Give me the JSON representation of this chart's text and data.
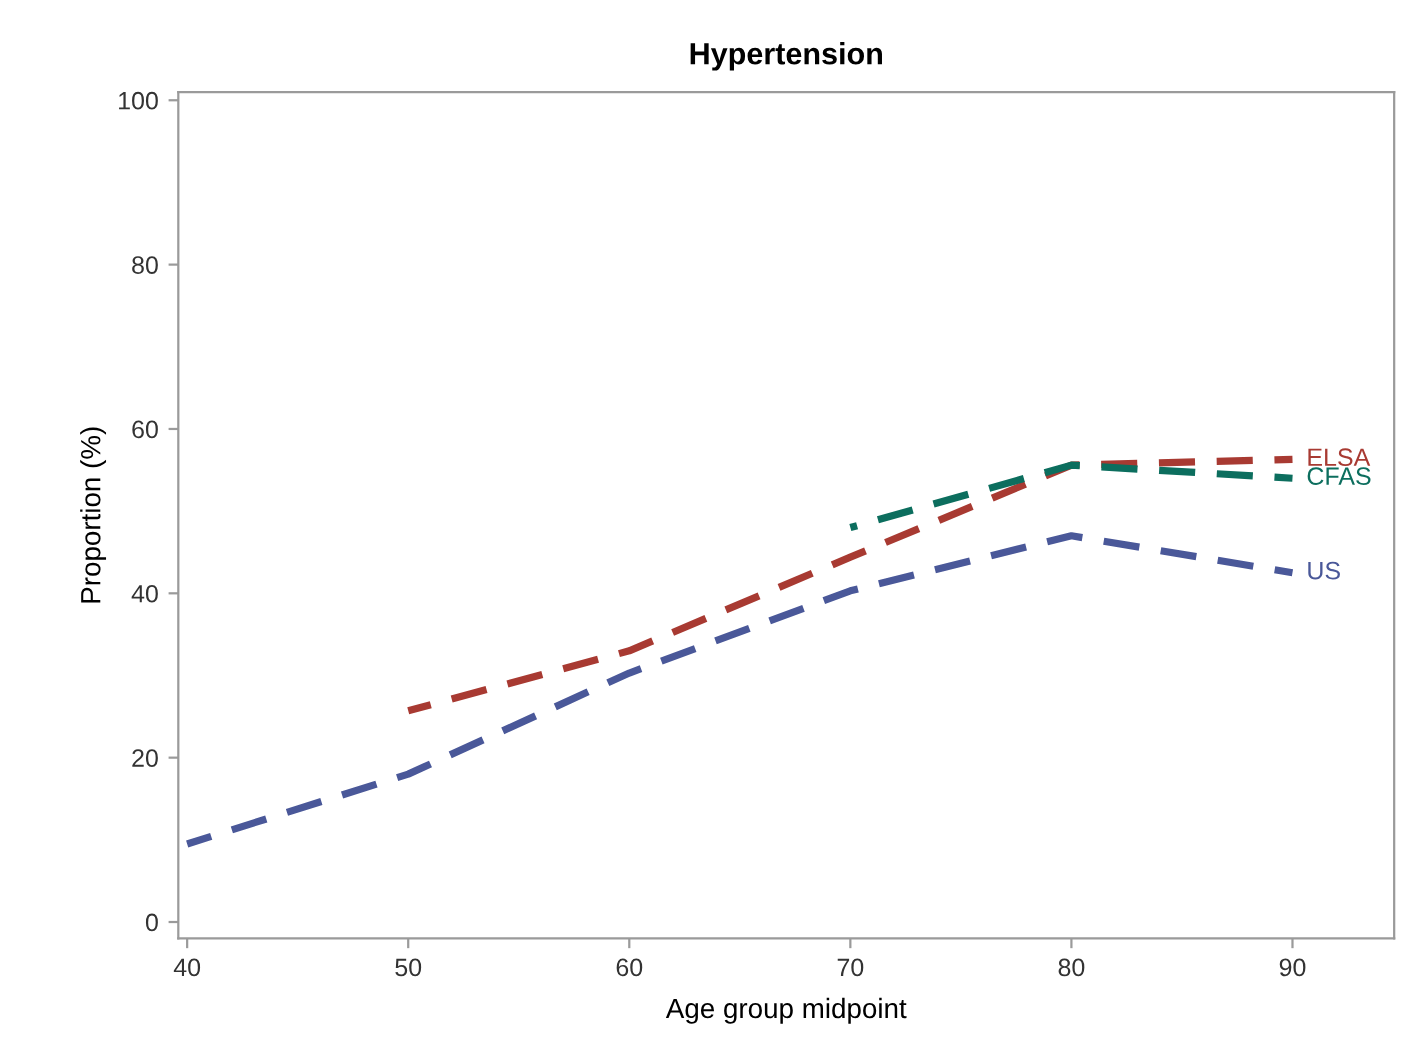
{
  "chart_data": {
    "type": "line",
    "title": "Hypertension",
    "xlabel": "Age group midpoint",
    "ylabel": "Proportion (%)",
    "xlim": [
      39.6,
      94.6
    ],
    "ylim": [
      -2,
      101
    ],
    "xticks": [
      40,
      50,
      60,
      70,
      80,
      90
    ],
    "yticks": [
      0,
      20,
      40,
      60,
      80,
      100
    ],
    "grid": false,
    "legend": false,
    "line_style": "dashed",
    "marker": "none",
    "series": [
      {
        "name": "US",
        "color": "#4a5899",
        "x": [
          40,
          50,
          60,
          70,
          80,
          90
        ],
        "values": [
          9.5,
          18,
          30.3,
          40.3,
          47,
          42.5
        ]
      },
      {
        "name": "ELSA",
        "color": "#a83a32",
        "x": [
          50,
          60,
          70,
          80,
          90
        ],
        "values": [
          25.7,
          33,
          44.4,
          55.6,
          56.3
        ]
      },
      {
        "name": "CFAS",
        "color": "#0c6e5e",
        "x": [
          70,
          80,
          90
        ],
        "values": [
          48,
          55.6,
          54
        ]
      }
    ]
  }
}
